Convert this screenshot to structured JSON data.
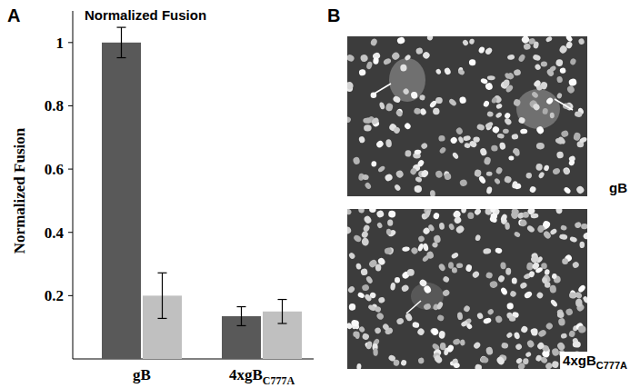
{
  "chart_data": {
    "type": "bar",
    "panel_label": "A",
    "title": "Normalized Fusion",
    "y_label": "Normalized Fusion",
    "categories": [
      "gB",
      "4xgB"
    ],
    "category_subscripts": [
      null,
      "C777A"
    ],
    "series": [
      {
        "color": "#595959",
        "values": [
          1.0,
          0.135
        ],
        "errors": [
          0.048,
          0.03
        ]
      },
      {
        "color": "#c0c0c0",
        "values": [
          0.2,
          0.15
        ],
        "errors": [
          0.072,
          0.038
        ]
      }
    ],
    "ylim": [
      0,
      1.1
    ],
    "yticks": [
      0.2,
      0.4,
      0.6,
      0.8,
      1
    ],
    "grid": false
  },
  "image_panel": {
    "panel_label": "B",
    "images": [
      {
        "label": "gB"
      },
      {
        "label": "4xgB",
        "label_subscript": "C777A"
      }
    ]
  }
}
